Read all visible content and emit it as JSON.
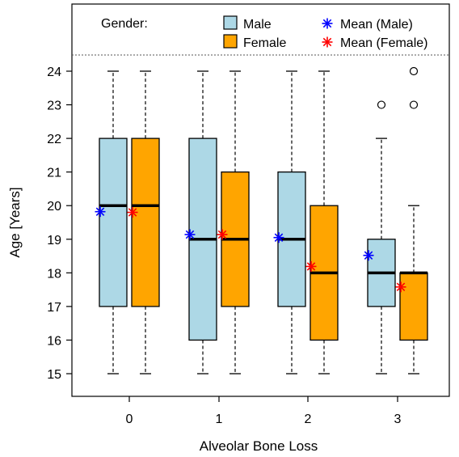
{
  "chart_data": {
    "type": "boxplot",
    "xlabel": "Alveolar Bone Loss",
    "ylabel": "Age [Years]",
    "ylim": [
      14.8,
      25.5
    ],
    "y_ticks": [
      15,
      16,
      17,
      18,
      19,
      20,
      21,
      22,
      23,
      24
    ],
    "categories": [
      "0",
      "1",
      "2",
      "3"
    ],
    "legend": {
      "title": "Gender:",
      "position": "top",
      "entries": [
        {
          "label": "Male",
          "kind": "box",
          "color": "#add8e6"
        },
        {
          "label": "Female",
          "kind": "box",
          "color": "#ffa500"
        },
        {
          "label": "Mean (Male)",
          "kind": "star",
          "color": "#0000ff"
        },
        {
          "label": "Mean (Female)",
          "kind": "star",
          "color": "#ff0000"
        }
      ]
    },
    "series": [
      {
        "name": "Male",
        "color": "#add8e6",
        "mean_color": "#0000ff",
        "boxes": [
          {
            "category": "0",
            "min": 15,
            "q1": 17,
            "median": 20,
            "q3": 22,
            "max": 24,
            "mean": 19.82,
            "outliers": []
          },
          {
            "category": "1",
            "min": 15,
            "q1": 16,
            "median": 19,
            "q3": 22,
            "max": 24,
            "mean": 19.14,
            "outliers": []
          },
          {
            "category": "2",
            "min": 15,
            "q1": 17,
            "median": 19,
            "q3": 21,
            "max": 24,
            "mean": 19.05,
            "outliers": []
          },
          {
            "category": "3",
            "min": 15,
            "q1": 17,
            "median": 18,
            "q3": 19,
            "max": 22,
            "mean": 18.52,
            "outliers": [
              23
            ]
          }
        ]
      },
      {
        "name": "Female",
        "color": "#ffa500",
        "mean_color": "#ff0000",
        "boxes": [
          {
            "category": "0",
            "min": 15,
            "q1": 17,
            "median": 20,
            "q3": 22,
            "max": 24,
            "mean": 19.8,
            "outliers": []
          },
          {
            "category": "1",
            "min": 15,
            "q1": 17,
            "median": 19,
            "q3": 21,
            "max": 24,
            "mean": 19.14,
            "outliers": []
          },
          {
            "category": "2",
            "min": 15,
            "q1": 16,
            "median": 18,
            "q3": 20,
            "max": 24,
            "mean": 18.19,
            "outliers": []
          },
          {
            "category": "3",
            "min": 15,
            "q1": 16,
            "median": 18,
            "q3": 18,
            "max": 20,
            "mean": 17.58,
            "outliers": [
              23,
              24
            ]
          }
        ]
      }
    ]
  }
}
